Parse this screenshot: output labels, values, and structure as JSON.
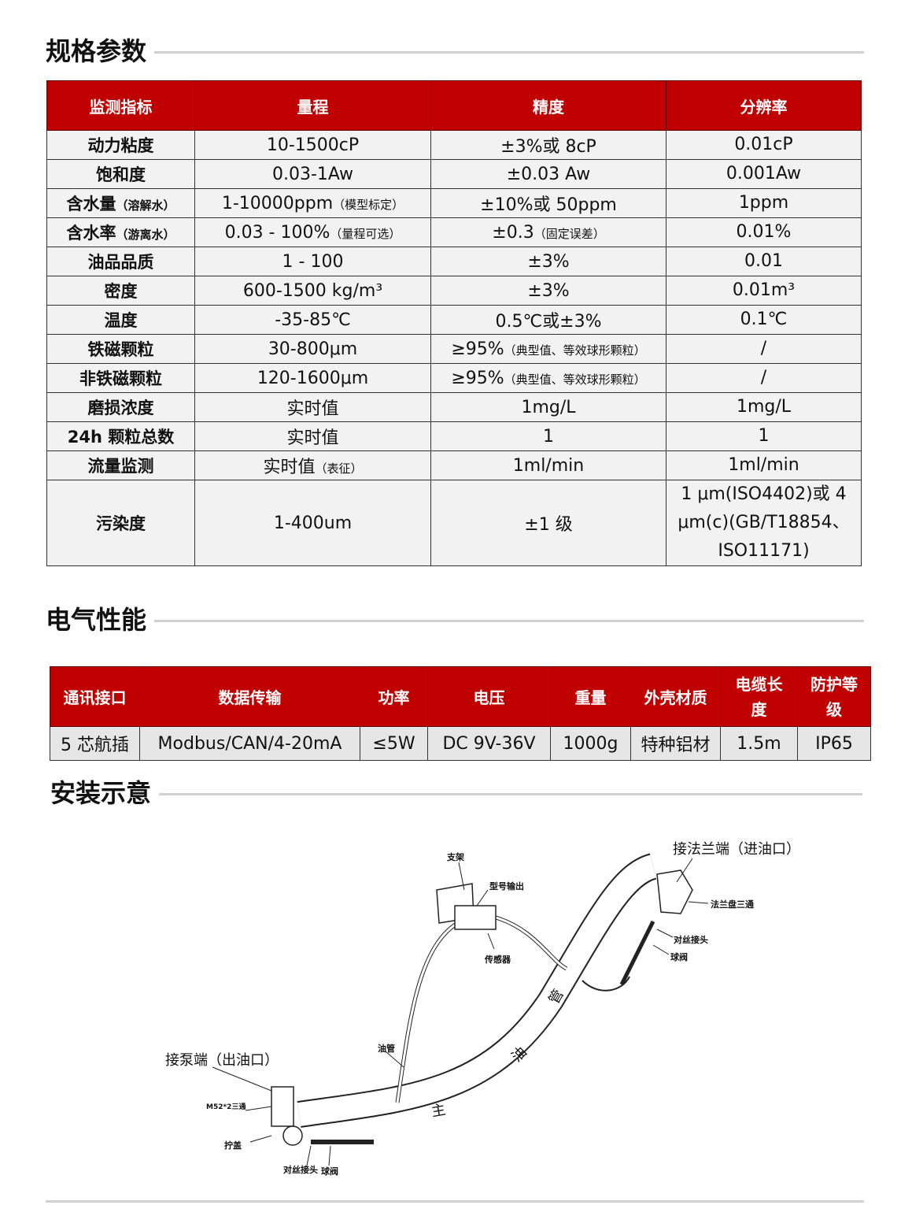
{
  "spec": {
    "title": "规格参数",
    "headers": [
      "监测指标",
      "量程",
      "精度",
      "分辨率"
    ],
    "rows": [
      {
        "k": "动力粘度",
        "kn": "",
        "r": "10-1500cP",
        "rn": "",
        "a": "±3%或 8cP",
        "an": "",
        "res": "0.01cP"
      },
      {
        "k": "饱和度",
        "kn": "",
        "r": "0.03-1Aw",
        "rn": "",
        "a": "±0.03 Aw",
        "an": "",
        "res": "0.001Aw"
      },
      {
        "k": "含水量",
        "kn": "（溶解水）",
        "r": "1-10000ppm",
        "rn": "（模型标定）",
        "a": "±10%或 50ppm",
        "an": "",
        "res": "1ppm"
      },
      {
        "k": "含水率",
        "kn": "（游离水）",
        "r": "0.03 - 100%",
        "rn": "（量程可选）",
        "a": "±0.3",
        "an": "（固定误差）",
        "res": "0.01%"
      },
      {
        "k": "油品品质",
        "kn": "",
        "r": "1 - 100",
        "rn": "",
        "a": "±3%",
        "an": "",
        "res": "0.01"
      },
      {
        "k": "密度",
        "kn": "",
        "r": "600-1500 kg/m³",
        "rn": "",
        "a": "±3%",
        "an": "",
        "res": "0.01m³"
      },
      {
        "k": "温度",
        "kn": "",
        "r": "-35-85℃",
        "rn": "",
        "a": "0.5℃或±3%",
        "an": "",
        "res": "0.1℃"
      },
      {
        "k": "铁磁颗粒",
        "kn": "",
        "r": "30-800μm",
        "rn": "",
        "a": "≥95%",
        "an": "（典型值、等效球形颗粒）",
        "res": "/"
      },
      {
        "k": "非铁磁颗粒",
        "kn": "",
        "r": "120-1600μm",
        "rn": "",
        "a": "≥95%",
        "an": "（典型值、等效球形颗粒）",
        "res": "/"
      },
      {
        "k": "磨损浓度",
        "kn": "",
        "r": "实时值",
        "rn": "",
        "a": "1mg/L",
        "an": "",
        "res": "1mg/L"
      },
      {
        "k": "24h 颗粒总数",
        "kn": "",
        "r": "实时值",
        "rn": "",
        "a": "1",
        "an": "",
        "res": "1"
      },
      {
        "k": "流量监测",
        "kn": "",
        "r": "实时值",
        "rn": "（表征）",
        "a": "1ml/min",
        "an": "",
        "res": "1ml/min"
      },
      {
        "k": "污染度",
        "kn": "",
        "r": "1-400um",
        "rn": "",
        "a": "±1 级",
        "an": "",
        "res": "1 μm(ISO4402)或 4 μm(c)(GB/T18854、ISO11171)"
      }
    ]
  },
  "elec": {
    "title": "电气性能",
    "headers": [
      "通讯接口",
      "数据传输",
      "功率",
      "电压",
      "重量",
      "外壳材质",
      "电缆长度",
      "防护等级"
    ],
    "values": [
      "5 芯航插",
      "Modbus/CAN/4-20mA",
      "≤5W",
      "DC 9V-36V",
      "1000g",
      "特种铝材",
      "1.5m",
      "IP65"
    ]
  },
  "install": {
    "title": "安装示意",
    "labels": {
      "flange_end": "接法兰端（进油口）",
      "pump_end": "接泵端（出油口）",
      "bracket": "支架",
      "output": "型号输出",
      "sensor": "传感器",
      "flange_tee": "法兰盘三通",
      "nipple": "对丝接头",
      "ball_valve": "球阀",
      "oil_pipe": "油管",
      "m52_tee": "M52*2三通",
      "cap": "拧盖",
      "nipple2": "对丝接头",
      "ball_valve2": "球阀",
      "main1": "主",
      "main2": "油",
      "main3": "管"
    }
  }
}
